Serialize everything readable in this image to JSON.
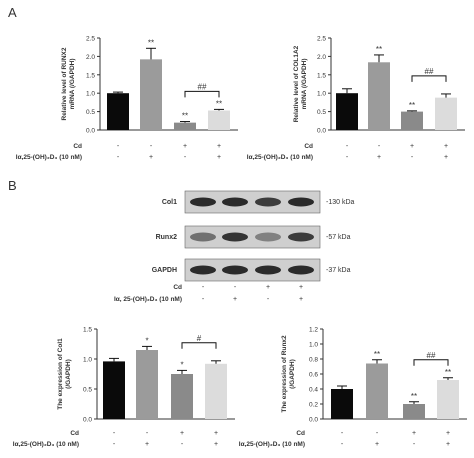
{
  "panels": {
    "a": "A",
    "b": "B"
  },
  "colors": {
    "axis": "#333333",
    "bar_black": "#0a0a0a",
    "bar_dark_gray": "#9b9b9b",
    "bar_mid_gray": "#8a8a8a",
    "bar_light_gray": "#dcdcdc",
    "blot_band": "#222222",
    "blot_bg": "#cfcfcf"
  },
  "treatment_table": {
    "row_labels": [
      "Cd",
      "Iα,25-(OH)₂D₃ (10 nM)"
    ],
    "blot_row_labels": [
      "Cd",
      "Iα, 25-(OH)₂D₃ (10 nM)"
    ],
    "cd": [
      "-",
      "-",
      "+",
      "+"
    ],
    "vitd": [
      "-",
      "+",
      "-",
      "+"
    ]
  },
  "western_blot": {
    "rows": [
      {
        "protein": "Col1",
        "size": "-130 kDa"
      },
      {
        "protein": "Runx2",
        "size": "-57  kDa"
      },
      {
        "protein": "GAPDH",
        "size": "-37  kDa"
      }
    ]
  },
  "chart_data": [
    {
      "type": "bar",
      "title": "",
      "xlabel": "",
      "ylabel_lines": [
        "Relative level of RUNX2",
        "mRNA (/GAPDH)"
      ],
      "ylim": [
        0,
        2.5
      ],
      "yticks": [
        "0.0",
        "0.5",
        "1.0",
        "1.5",
        "2.0",
        "2.5"
      ],
      "categories": [
        "- / -",
        "- / +",
        "+ / -",
        "+ / +"
      ],
      "values": [
        1.0,
        1.92,
        0.2,
        0.53
      ],
      "errors": [
        0.03,
        0.3,
        0.03,
        0.03
      ],
      "significance": [
        "",
        "**",
        "**",
        "**"
      ],
      "bracket": {
        "from": 2,
        "to": 3,
        "label": "##"
      }
    },
    {
      "type": "bar",
      "title": "",
      "xlabel": "",
      "ylabel_lines": [
        "Relative level of COL1A2",
        "mRNA (/GAPDH)"
      ],
      "ylim": [
        0,
        2.5
      ],
      "yticks": [
        "0.0",
        "0.5",
        "1.0",
        "1.5",
        "2.0",
        "2.5"
      ],
      "categories": [
        "- / -",
        "- / +",
        "+ / -",
        "+ / +"
      ],
      "values": [
        1.0,
        1.84,
        0.5,
        0.88
      ],
      "errors": [
        0.12,
        0.2,
        0.02,
        0.1
      ],
      "significance": [
        "",
        "**",
        "**",
        ""
      ],
      "bracket": {
        "from": 2,
        "to": 3,
        "label": "##"
      }
    },
    {
      "type": "bar",
      "title": "",
      "xlabel": "",
      "ylabel_lines": [
        "The expression of Col1",
        "(/GAPDH)"
      ],
      "ylim": [
        0,
        1.5
      ],
      "yticks": [
        "0.0",
        "0.5",
        "1.0",
        "1.5"
      ],
      "categories": [
        "- / -",
        "- / +",
        "+ / -",
        "+ / +"
      ],
      "values": [
        0.96,
        1.15,
        0.75,
        0.92
      ],
      "errors": [
        0.05,
        0.06,
        0.06,
        0.05
      ],
      "significance": [
        "",
        "*",
        "*",
        ""
      ],
      "bracket": {
        "from": 2,
        "to": 3,
        "label": "#"
      }
    },
    {
      "type": "bar",
      "title": "",
      "xlabel": "",
      "ylabel_lines": [
        "The expression of Runx2",
        "(/GAPDH)"
      ],
      "ylim": [
        0,
        1.2
      ],
      "yticks": [
        "0.0",
        "0.2",
        "0.4",
        "0.6",
        "0.8",
        "1.0",
        "1.2"
      ],
      "categories": [
        "- / -",
        "- / +",
        "+ / -",
        "+ / +"
      ],
      "values": [
        0.4,
        0.74,
        0.2,
        0.52
      ],
      "errors": [
        0.04,
        0.05,
        0.03,
        0.03
      ],
      "significance": [
        "",
        "**",
        "**",
        "**"
      ],
      "bracket": {
        "from": 2,
        "to": 3,
        "label": "##"
      }
    }
  ]
}
